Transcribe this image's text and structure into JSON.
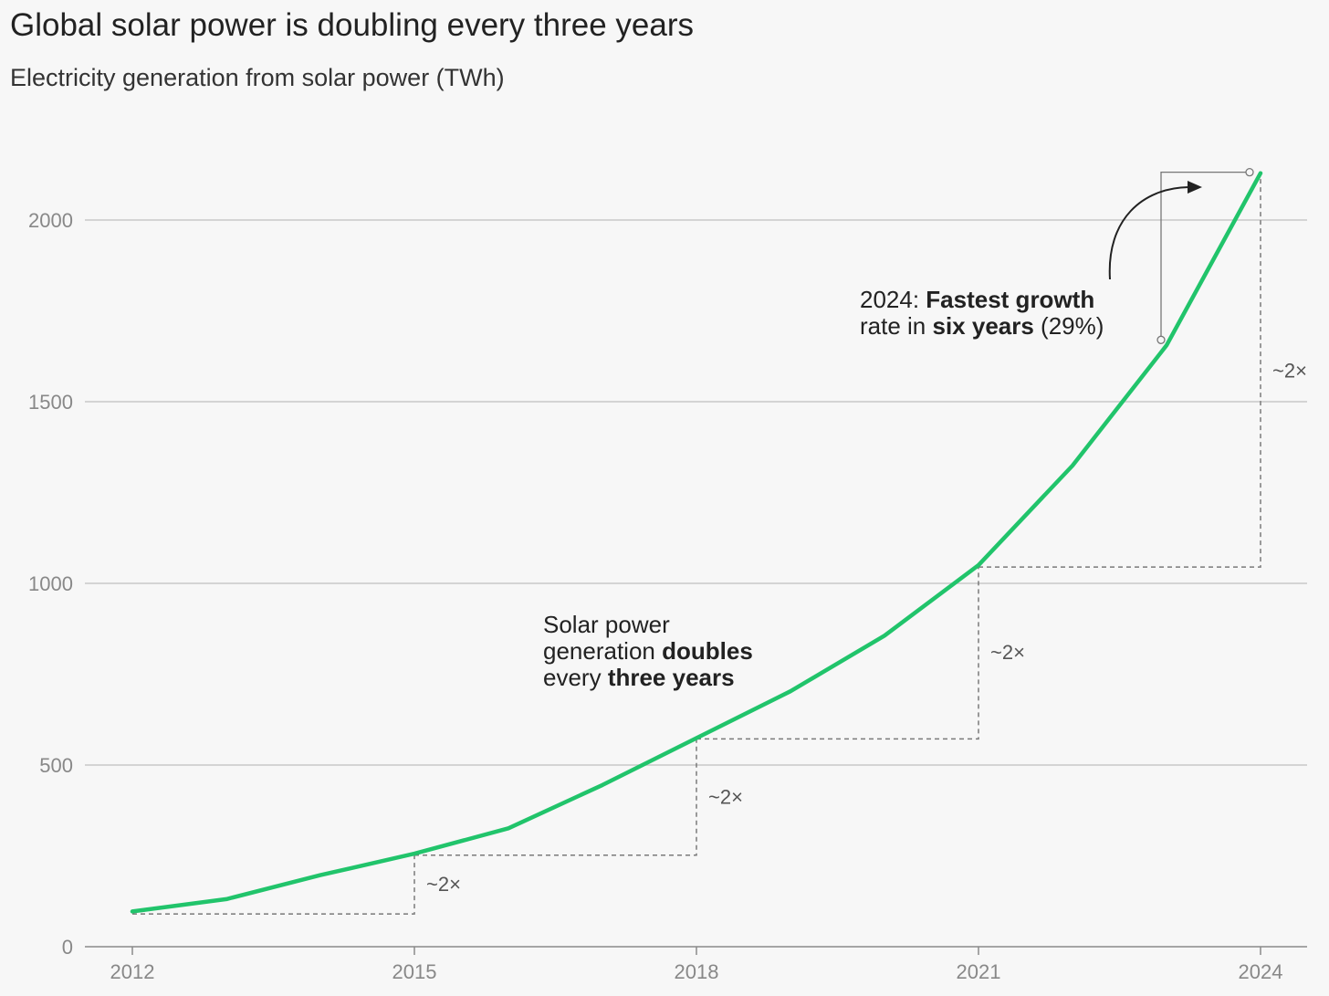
{
  "title": "Global solar power is doubling every three years",
  "subtitle": "Electricity generation from solar power (TWh)",
  "colors": {
    "line": "#21c46b",
    "grid": "#c8c8c8",
    "dash": "#7a7a7a",
    "background": "#f7f7f7"
  },
  "chart_data": {
    "type": "line",
    "x": [
      2012,
      2013,
      2014,
      2015,
      2016,
      2017,
      2018,
      2019,
      2020,
      2021,
      2022,
      2023,
      2024
    ],
    "series": [
      {
        "name": "Solar electricity generation (TWh)",
        "values": [
          97,
          131,
          197,
          256,
          326,
          445,
          574,
          703,
          856,
          1050,
          1324,
          1655,
          2129
        ]
      }
    ],
    "xticks": [
      "2012",
      "2015",
      "2018",
      "2021",
      "2024"
    ],
    "yticks": [
      "0",
      "500",
      "1000",
      "1500",
      "2000"
    ],
    "ylim": [
      0,
      2200
    ],
    "xlim": [
      2011.85,
      2024.55
    ],
    "doubling_steps": [
      {
        "from_year": 2012,
        "to_year": 2015,
        "from_value": 90,
        "to_value": 256,
        "label": "~2×"
      },
      {
        "from_year": 2015,
        "to_year": 2018,
        "from_value": 252,
        "to_value": 574,
        "label": "~2×"
      },
      {
        "from_year": 2018,
        "to_year": 2021,
        "from_value": 572,
        "to_value": 1050,
        "label": "~2×"
      },
      {
        "from_year": 2021,
        "to_year": 2024,
        "from_value": 1045,
        "to_value": 2129,
        "label": "~2×"
      }
    ],
    "annotations": {
      "doubles": {
        "l1": "Solar power",
        "l2a": "generation ",
        "l2b": "doubles",
        "l3a": "every ",
        "l3b": "three years"
      },
      "fastest": {
        "l1a": "2024: ",
        "l1b": "Fastest growth",
        "l2a": "rate in ",
        "l2b": "six years",
        "l2c": " (29%)"
      }
    }
  }
}
